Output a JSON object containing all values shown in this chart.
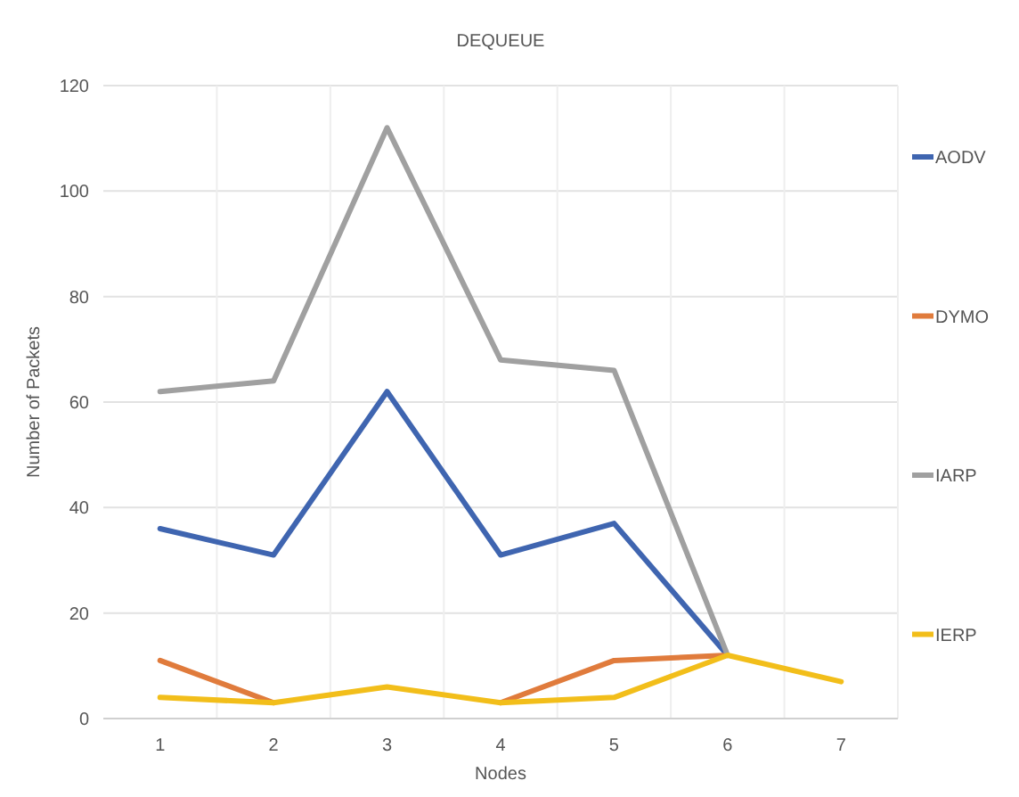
{
  "chart_data": {
    "type": "line",
    "title": "DEQUEUE",
    "xlabel": "Nodes",
    "ylabel": "Number of Packets",
    "categories": [
      "1",
      "2",
      "3",
      "4",
      "5",
      "6",
      "7"
    ],
    "series": [
      {
        "name": "AODV",
        "color": "#3f65b0",
        "values": [
          36,
          31,
          62,
          31,
          37,
          12,
          null
        ]
      },
      {
        "name": "DYMO",
        "color": "#e07b3c",
        "values": [
          11,
          3,
          null,
          3,
          11,
          12,
          null
        ]
      },
      {
        "name": "IARP",
        "color": "#a0a0a0",
        "values": [
          62,
          64,
          112,
          68,
          66,
          12,
          null
        ]
      },
      {
        "name": "IERP",
        "color": "#f2be1a",
        "values": [
          4,
          3,
          6,
          3,
          4,
          12,
          7
        ]
      }
    ],
    "ylim": [
      0,
      120
    ],
    "yticks": [
      0,
      20,
      40,
      60,
      80,
      100,
      120
    ],
    "grid": true,
    "legend": "right",
    "marker": "none",
    "line_style": "solid"
  }
}
